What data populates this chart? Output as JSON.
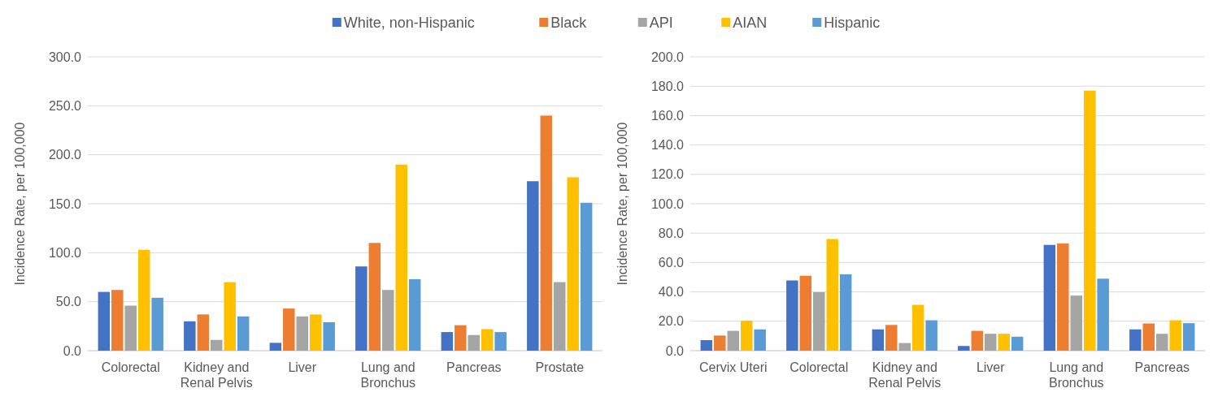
{
  "chart_data": [
    {
      "type": "bar",
      "ylabel": "Incidence Rate, per 100,000",
      "categories": [
        "Colorectal",
        "Kidney and Renal Pelvis",
        "Liver",
        "Lung and Bronchus",
        "Pancreas",
        "Prostate"
      ],
      "ylim": [
        0,
        300
      ],
      "yticks": [
        {
          "value": 0,
          "label": "0.0"
        },
        {
          "value": 50,
          "label": "50.0"
        },
        {
          "value": 100,
          "label": "100.0"
        },
        {
          "value": 150,
          "label": "150.0"
        },
        {
          "value": 200,
          "label": "200.0"
        },
        {
          "value": 250,
          "label": "250.0"
        },
        {
          "value": 300,
          "label": "300.0"
        }
      ],
      "grid": "y",
      "legend": "top",
      "series": [
        {
          "name": "White, non-Hispanic",
          "color": "#4472c4",
          "values": [
            60,
            30,
            8,
            86,
            19,
            173
          ]
        },
        {
          "name": "Black",
          "color": "#ed7d31",
          "values": [
            62,
            37,
            43,
            110,
            26,
            240
          ]
        },
        {
          "name": "API",
          "color": "#a5a5a5",
          "values": [
            46,
            11,
            35,
            62,
            16,
            70
          ]
        },
        {
          "name": "AIAN",
          "color": "#ffc000",
          "values": [
            103,
            70,
            37,
            190,
            22,
            177
          ]
        },
        {
          "name": "Hispanic",
          "color": "#5b9bd5",
          "values": [
            54,
            35,
            29,
            73,
            19,
            151
          ]
        }
      ]
    },
    {
      "type": "bar",
      "ylabel": "Incidence Rate, per 100,000",
      "categories": [
        "Cervix Uteri",
        "Colorectal",
        "Kidney and Renal Pelvis",
        "Liver",
        "Lung and Bronchus",
        "Pancreas"
      ],
      "ylim": [
        0,
        200
      ],
      "yticks": [
        {
          "value": 0,
          "label": "0.0"
        },
        {
          "value": 20,
          "label": "20.0"
        },
        {
          "value": 40,
          "label": "40.0"
        },
        {
          "value": 60,
          "label": "60.0"
        },
        {
          "value": 80,
          "label": "80.0"
        },
        {
          "value": 100,
          "label": "100.0"
        },
        {
          "value": 120,
          "label": "120.0"
        },
        {
          "value": 140,
          "label": "140.0"
        },
        {
          "value": 160,
          "label": "160.0"
        },
        {
          "value": 180,
          "label": "180.0"
        },
        {
          "value": 200,
          "label": "200.0"
        }
      ],
      "grid": "y",
      "series": [
        {
          "name": "White, non-Hispanic",
          "color": "#4472c4",
          "values": [
            7.2,
            47.8,
            14.5,
            3.2,
            72,
            14.5
          ]
        },
        {
          "name": "Black",
          "color": "#ed7d31",
          "values": [
            10.3,
            51,
            17.5,
            13.5,
            73,
            18.5
          ]
        },
        {
          "name": "API",
          "color": "#a5a5a5",
          "values": [
            13.5,
            39.8,
            5.2,
            11.5,
            37.5,
            11.5
          ]
        },
        {
          "name": "AIAN",
          "color": "#ffc000",
          "values": [
            20.5,
            76,
            31.2,
            11.5,
            177,
            20.7
          ]
        },
        {
          "name": "Hispanic",
          "color": "#5b9bd5",
          "values": [
            14.5,
            52,
            20.7,
            9.5,
            49,
            18.7
          ]
        }
      ]
    }
  ]
}
